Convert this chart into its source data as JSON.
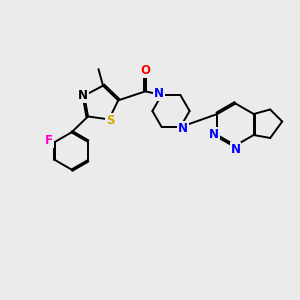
{
  "background_color": "#ebebeb",
  "atom_colors": {
    "N": "#0000ff",
    "O": "#ff0000",
    "S": "#ccaa00",
    "F": "#ff00cc",
    "C": "#000000"
  },
  "bond_color": "#000000",
  "figsize": [
    3.0,
    3.0
  ],
  "dpi": 100,
  "lw": 1.4,
  "fs": 8.5
}
